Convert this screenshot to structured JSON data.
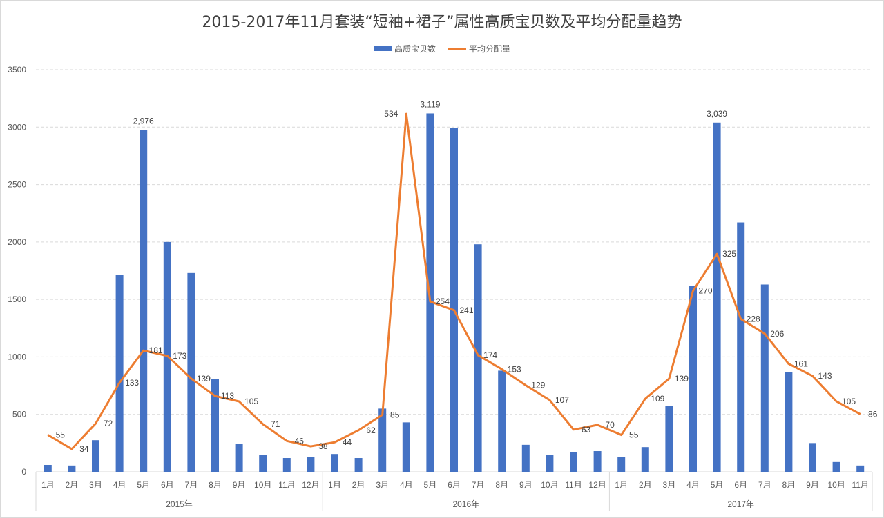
{
  "chart_data": {
    "type": "bar+line",
    "title": "2015-2017年11月套装“短袖+裙子”属性高质宝贝数及平均分配量趋势",
    "xlabel": "",
    "ylabel": "",
    "ylim": [
      0,
      3500
    ],
    "y_ticks": [
      0,
      500,
      1000,
      1500,
      2000,
      2500,
      3000,
      3500
    ],
    "secondary_ylim": [
      0,
      600
    ],
    "grid": true,
    "legend_position": "top",
    "legend": [
      "高质宝贝数",
      "平均分配量"
    ],
    "colors": {
      "bar": "#4472c4",
      "line": "#ed7d31"
    },
    "year_groups": [
      {
        "label": "2015年",
        "months": 12
      },
      {
        "label": "2016年",
        "months": 12
      },
      {
        "label": "2017年",
        "months": 11
      }
    ],
    "categories": [
      "2015-1月",
      "2015-2月",
      "2015-3月",
      "2015-4月",
      "2015-5月",
      "2015-6月",
      "2015-7月",
      "2015-8月",
      "2015-9月",
      "2015-10月",
      "2015-11月",
      "2015-12月",
      "2016-1月",
      "2016-2月",
      "2016-3月",
      "2016-4月",
      "2016-5月",
      "2016-6月",
      "2016-7月",
      "2016-8月",
      "2016-9月",
      "2016-10月",
      "2016-11月",
      "2016-12月",
      "2017-1月",
      "2017-2月",
      "2017-3月",
      "2017-4月",
      "2017-5月",
      "2017-6月",
      "2017-7月",
      "2017-8月",
      "2017-9月",
      "2017-10月",
      "2017-11月"
    ],
    "month_labels": [
      "1月",
      "2月",
      "3月",
      "4月",
      "5月",
      "6月",
      "7月",
      "8月",
      "9月",
      "10月",
      "11月",
      "12月",
      "1月",
      "2月",
      "3月",
      "4月",
      "5月",
      "6月",
      "7月",
      "8月",
      "9月",
      "10月",
      "11月",
      "12月",
      "1月",
      "2月",
      "3月",
      "4月",
      "5月",
      "6月",
      "7月",
      "8月",
      "9月",
      "10月",
      "11月"
    ],
    "series": [
      {
        "name": "高质宝贝数",
        "type": "bar",
        "axis": "primary",
        "values": [
          60,
          55,
          275,
          1715,
          2976,
          2000,
          1730,
          805,
          245,
          145,
          120,
          130,
          155,
          120,
          550,
          430,
          3119,
          2990,
          1980,
          880,
          235,
          145,
          170,
          180,
          130,
          215,
          575,
          1615,
          3039,
          2170,
          1630,
          865,
          250,
          85,
          55
        ],
        "data_labels": {
          "4": "2,976",
          "16": "3,119",
          "28": "3,039"
        }
      },
      {
        "name": "平均分配量",
        "type": "line",
        "axis": "secondary",
        "values": [
          55,
          34,
          72,
          133,
          181,
          173,
          139,
          113,
          105,
          71,
          46,
          38,
          44,
          62,
          85,
          534,
          254,
          241,
          174,
          153,
          129,
          107,
          63,
          70,
          55,
          109,
          139,
          270,
          325,
          228,
          206,
          161,
          143,
          105,
          86
        ],
        "data_labels_text": [
          "55",
          "34",
          "72",
          "133",
          "181",
          "173",
          "139",
          "113",
          "105",
          "71",
          "46",
          "38",
          "44",
          "62",
          "85",
          "534",
          "254",
          "241",
          "174",
          "153",
          "129",
          "107",
          "63",
          "70",
          "55",
          "109",
          "139",
          "270",
          "325",
          "228",
          "206",
          "161",
          "143",
          "105",
          "86"
        ]
      }
    ]
  },
  "legend": {
    "bar_label": "高质宝贝数",
    "line_label": "平均分配量"
  }
}
